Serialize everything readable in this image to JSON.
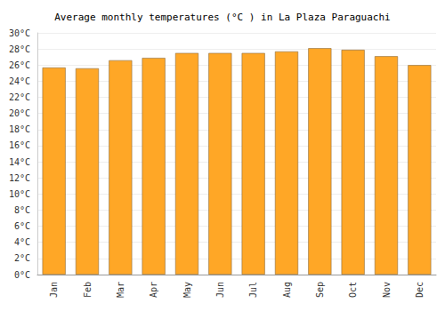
{
  "chart_data": {
    "type": "bar",
    "title": "Average monthly temperatures (°C ) in La Plaza Paraguachi",
    "categories": [
      "Jan",
      "Feb",
      "Mar",
      "Apr",
      "May",
      "Jun",
      "Jul",
      "Aug",
      "Sep",
      "Oct",
      "Nov",
      "Dec"
    ],
    "values": [
      25.7,
      25.6,
      26.6,
      26.9,
      27.5,
      27.5,
      27.5,
      27.7,
      28.1,
      27.9,
      27.1,
      26.0
    ],
    "color": "#ffa726",
    "ylim": [
      0,
      30
    ],
    "yticks": [
      {
        "value": 0,
        "label": "0°C"
      },
      {
        "value": 2,
        "label": "2°C"
      },
      {
        "value": 4,
        "label": "4°C"
      },
      {
        "value": 6,
        "label": "6°C"
      },
      {
        "value": 8,
        "label": "8°C"
      },
      {
        "value": 10,
        "label": "10°C"
      },
      {
        "value": 12,
        "label": "12°C"
      },
      {
        "value": 14,
        "label": "14°C"
      },
      {
        "value": 16,
        "label": "16°C"
      },
      {
        "value": 18,
        "label": "18°C"
      },
      {
        "value": 20,
        "label": "20°C"
      },
      {
        "value": 22,
        "label": "22°C"
      },
      {
        "value": 24,
        "label": "24°C"
      },
      {
        "value": 26,
        "label": "26°C"
      },
      {
        "value": 28,
        "label": "28°C"
      },
      {
        "value": 30,
        "label": "30°C"
      }
    ],
    "grid": true
  }
}
